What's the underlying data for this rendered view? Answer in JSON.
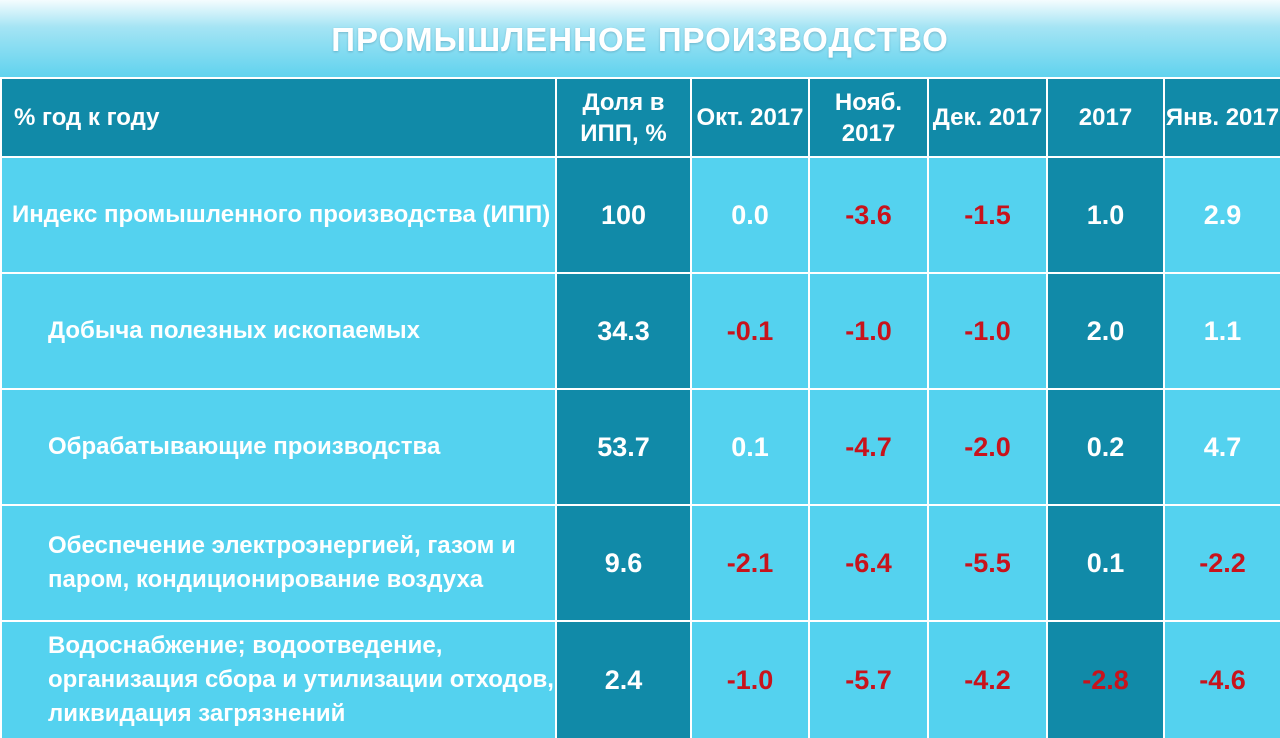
{
  "title": "ПРОМЫШЛЕННОЕ ПРОИЗВОДСТВО",
  "table": {
    "headers": [
      "% год к году",
      "Доля в ИПП, %",
      "Окт. 2017",
      "Нояб. 2017",
      "Дек. 2017",
      "2017",
      "Янв. 2017"
    ],
    "rows": [
      {
        "label": "Индекс промышленного производства (ИПП)",
        "values": [
          "100",
          "0.0",
          "-3.6",
          "-1.5",
          "1.0",
          "2.9"
        ]
      },
      {
        "label": "Добыча полезных ископаемых",
        "values": [
          "34.3",
          "-0.1",
          "-1.0",
          "-1.0",
          "2.0",
          "1.1"
        ]
      },
      {
        "label": "Обрабатывающие производства",
        "values": [
          "53.7",
          "0.1",
          "-4.7",
          "-2.0",
          "0.2",
          "4.7"
        ]
      },
      {
        "label": "Обеспечение электроэнергией, газом и паром, кондиционирование воздуха",
        "values": [
          "9.6",
          "-2.1",
          "-6.4",
          "-5.5",
          "0.1",
          "-2.2"
        ]
      },
      {
        "label": "Водоснабжение; водоотведение, организация сбора и утилизации отходов, ликвидация загрязнений",
        "values": [
          "2.4",
          "-1.0",
          "-5.7",
          "-4.2",
          "-2.8",
          "-4.6"
        ]
      }
    ]
  },
  "colors": {
    "header_bg": "#118aa8",
    "cell_bg": "#54d2ef",
    "negative_text": "#c8131c",
    "text": "#ffffff"
  }
}
